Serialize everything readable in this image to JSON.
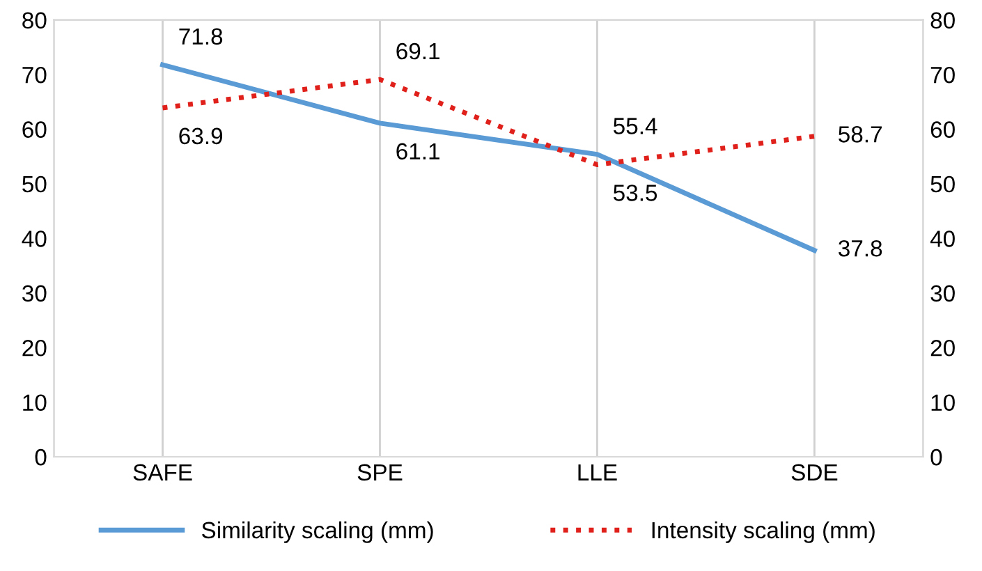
{
  "chart_data": {
    "type": "line",
    "categories": [
      "SAFE",
      "SPE",
      "LLE",
      "SDE"
    ],
    "series": [
      {
        "name": "Similarity scaling (mm)",
        "color": "#5b9bd5",
        "values": [
          71.8,
          61.1,
          55.4,
          37.8
        ],
        "line_style": "solid"
      },
      {
        "name": "Intensity scaling (mm)",
        "color": "#e0201b",
        "values": [
          63.9,
          69.1,
          53.5,
          58.7
        ],
        "line_style": "dotted"
      }
    ],
    "ylim": [
      0,
      80
    ],
    "yticks": [
      0,
      10,
      20,
      30,
      40,
      50,
      60,
      70,
      80
    ],
    "y2lim": [
      0,
      80
    ],
    "y2ticks": [
      0,
      10,
      20,
      30,
      40,
      50,
      60,
      70,
      80
    ],
    "data_labels": true,
    "grid": "x",
    "legend": "bottom"
  }
}
